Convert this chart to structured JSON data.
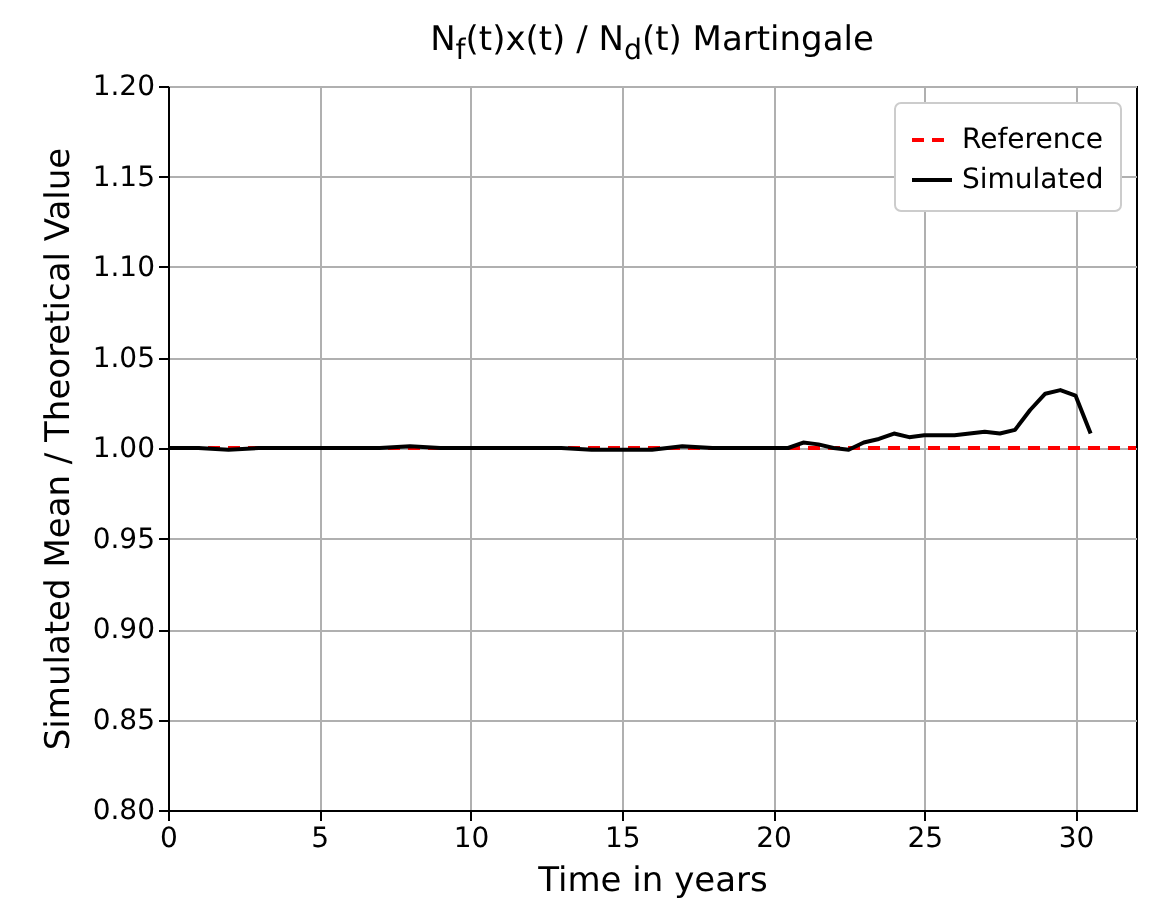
{
  "chart_data": {
    "type": "line",
    "title": "N$_{f}$(t)x(t) / N$_{d}$(t) Martingale",
    "xlabel": "Time in years",
    "ylabel": "Simulated Mean / Theoretical Value",
    "series": [
      {
        "name": "Reference",
        "color": "#ff0000",
        "line_style": "dashed",
        "x": [
          0,
          32
        ],
        "values": [
          1.0,
          1.0
        ]
      },
      {
        "name": "Simulated",
        "color": "#000000",
        "line_style": "solid",
        "x": [
          0,
          1,
          2,
          3,
          4,
          5,
          6,
          7,
          8,
          9,
          10,
          11,
          12,
          13,
          14,
          15,
          16,
          17,
          18,
          19,
          20,
          20.5,
          21,
          21.5,
          22,
          22.5,
          23,
          23.5,
          24,
          24.5,
          25,
          25.5,
          26,
          26.5,
          27,
          27.5,
          28,
          28.5,
          29,
          29.5,
          30,
          30.5
        ],
        "values": [
          1.0,
          1.0,
          0.999,
          1.0,
          1.0,
          1.0,
          1.0,
          1.0,
          1.001,
          1.0,
          1.0,
          1.0,
          1.0,
          1.0,
          0.999,
          0.999,
          0.999,
          1.001,
          1.0,
          1.0,
          1.0,
          1.0,
          1.003,
          1.002,
          1.0,
          0.999,
          1.003,
          1.005,
          1.008,
          1.006,
          1.007,
          1.007,
          1.007,
          1.008,
          1.009,
          1.008,
          1.01,
          1.021,
          1.03,
          1.032,
          1.029,
          1.008
        ]
      }
    ],
    "xlim": [
      0,
      32
    ],
    "xticks": [
      0,
      5,
      10,
      15,
      20,
      25,
      30
    ],
    "ylim": [
      0.8,
      1.2
    ],
    "yticks": [
      {
        "value": 0.8,
        "label": "0.80"
      },
      {
        "value": 0.85,
        "label": "0.85"
      },
      {
        "value": 0.9,
        "label": "0.90"
      },
      {
        "value": 0.95,
        "label": "0.95"
      },
      {
        "value": 1.0,
        "label": "1.00"
      },
      {
        "value": 1.05,
        "label": "1.05"
      },
      {
        "value": 1.1,
        "label": "1.10"
      },
      {
        "value": 1.15,
        "label": "1.15"
      },
      {
        "value": 1.2,
        "label": "1.20"
      }
    ],
    "grid": true,
    "legend": "top right"
  }
}
